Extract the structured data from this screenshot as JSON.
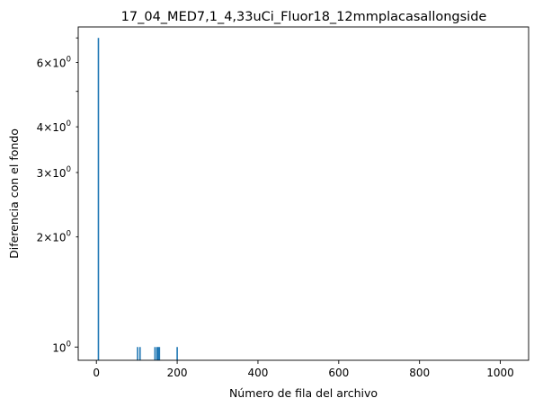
{
  "chart_data": {
    "type": "bar",
    "title": "17_04_MED7,1_4,33uCi_Fluor18_12mmplacasallongside",
    "xlabel": "Número de fila del archivo",
    "ylabel": "Diferencia con el fondo",
    "yscale": "log",
    "xlim": [
      -45,
      1070
    ],
    "ylim": [
      0.92,
      7.5
    ],
    "grid": false,
    "bar_color": "#1f77b4",
    "x_ticks": [
      {
        "value": 0,
        "label": "0"
      },
      {
        "value": 200,
        "label": "200"
      },
      {
        "value": 400,
        "label": "400"
      },
      {
        "value": 600,
        "label": "600"
      },
      {
        "value": 800,
        "label": "800"
      },
      {
        "value": 1000,
        "label": "1000"
      }
    ],
    "y_major_ticks": [
      {
        "value": 1,
        "label": "10",
        "exp": "0"
      }
    ],
    "y_minor_ticks": [
      {
        "value": 2,
        "coef": "2",
        "base": "10",
        "exp": "0"
      },
      {
        "value": 3,
        "coef": "3",
        "base": "10",
        "exp": "0"
      },
      {
        "value": 4,
        "coef": "4",
        "base": "10",
        "exp": "0"
      },
      {
        "value": 6,
        "coef": "6",
        "base": "10",
        "exp": "0"
      },
      {
        "value": 5
      },
      {
        "value": 7
      }
    ],
    "x": [
      5,
      102,
      108,
      145,
      150,
      153,
      156,
      200
    ],
    "values": [
      7,
      1,
      1,
      1,
      1,
      1,
      1,
      1
    ],
    "bar_width": 3.5
  }
}
